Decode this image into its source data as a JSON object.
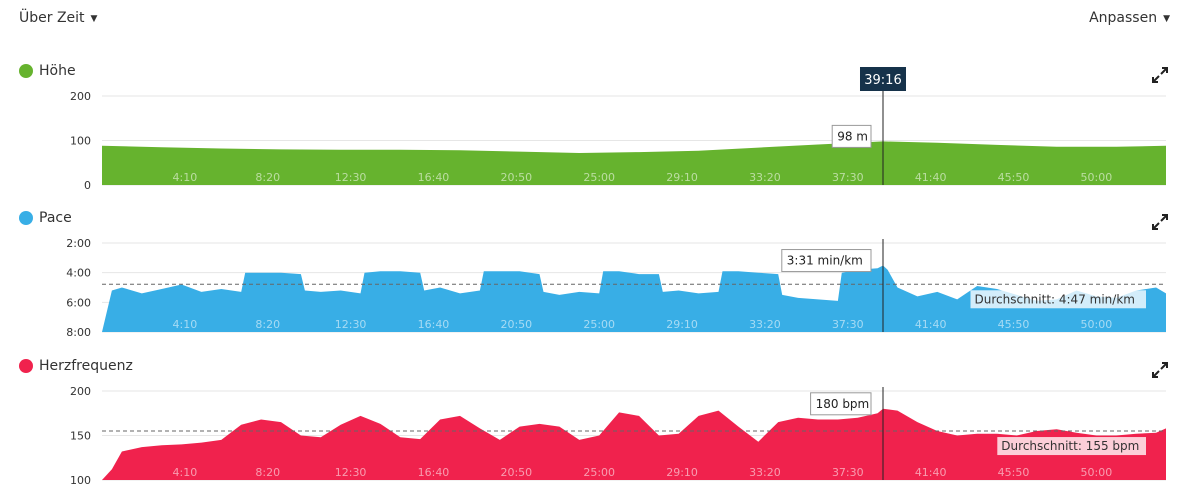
{
  "controls": {
    "time_selector": "Über Zeit",
    "customize": "Anpassen"
  },
  "cursor": {
    "time_label": "39:16",
    "x_minutes": 39.27
  },
  "x_tick_labels": [
    "4:10",
    "8:20",
    "12:30",
    "16:40",
    "20:50",
    "25:00",
    "29:10",
    "33:20",
    "37:30",
    "41:40",
    "45:50",
    "50:00"
  ],
  "colors": {
    "elevation": "#66b32e",
    "pace": "#38aee6",
    "heart_rate": "#f0224d"
  },
  "panels": {
    "elevation": {
      "title": "Höhe",
      "tooltip": "98 m"
    },
    "pace": {
      "title": "Pace",
      "tooltip": "3:31 min/km",
      "average_label": "Durchschnitt: 4:47 min/km"
    },
    "heart_rate": {
      "title": "Herzfrequenz",
      "tooltip": "180 bpm",
      "average_label": "Durchschnitt: 155 bpm"
    }
  },
  "chart_data": [
    {
      "type": "area",
      "series": [
        {
          "name": "Höhe",
          "unit": "m",
          "x": [
            0,
            3,
            6,
            9,
            12,
            15,
            18,
            21,
            24,
            27,
            30,
            33,
            36,
            39.27,
            42,
            45,
            48,
            51,
            53.5
          ],
          "y": [
            88,
            85,
            82,
            80,
            79,
            79,
            78,
            75,
            72,
            74,
            77,
            84,
            91,
            98,
            95,
            90,
            86,
            86,
            88
          ]
        }
      ],
      "x_ticks": [
        4.167,
        8.333,
        12.5,
        16.667,
        20.833,
        25,
        29.167,
        33.333,
        37.5,
        41.667,
        45.833,
        50
      ],
      "xlim": [
        0,
        53.5
      ],
      "y_ticks": [
        0,
        100,
        200
      ],
      "y_tick_labels": [
        "0",
        "100",
        "200"
      ],
      "ylim": [
        0,
        200
      ]
    },
    {
      "type": "area",
      "series": [
        {
          "name": "Pace",
          "unit": "min/km",
          "x": [
            0,
            0.5,
            1,
            2,
            3,
            4,
            5,
            6,
            7,
            7.2,
            8,
            9,
            10,
            10.2,
            11,
            12,
            13,
            13.2,
            14,
            15,
            16,
            16.2,
            17,
            18,
            19,
            19.2,
            20,
            21,
            22,
            22.2,
            23,
            24,
            25,
            25.2,
            26,
            27,
            28,
            28.2,
            29,
            30,
            31,
            31.2,
            32,
            33,
            34,
            34.2,
            35,
            36,
            37,
            37.2,
            38,
            39,
            39.27,
            39.5,
            40,
            41,
            42,
            43,
            44,
            45,
            46,
            47,
            48,
            49,
            50,
            51,
            52,
            53,
            53.5
          ],
          "y": [
            8,
            5.2,
            5.0,
            5.4,
            5.1,
            4.8,
            5.3,
            5.1,
            5.3,
            4.0,
            4.0,
            4.0,
            4.1,
            5.2,
            5.3,
            5.2,
            5.4,
            4.0,
            3.9,
            3.9,
            4.0,
            5.2,
            5.0,
            5.4,
            5.2,
            3.9,
            3.9,
            3.9,
            4.1,
            5.3,
            5.5,
            5.3,
            5.4,
            3.9,
            3.9,
            4.1,
            4.1,
            5.3,
            5.2,
            5.4,
            5.3,
            3.9,
            3.9,
            4.0,
            4.1,
            5.5,
            5.7,
            5.8,
            5.9,
            4.0,
            3.8,
            3.7,
            3.52,
            3.8,
            5.0,
            5.6,
            5.3,
            5.8,
            4.9,
            5.1,
            5.5,
            5.9,
            5.8,
            5.2,
            5.6,
            5.7,
            5.2,
            5.0,
            5.4
          ]
        }
      ],
      "x_ticks": [
        4.167,
        8.333,
        12.5,
        16.667,
        20.833,
        25,
        29.167,
        33.333,
        37.5,
        41.667,
        45.833,
        50
      ],
      "xlim": [
        0,
        53.5
      ],
      "y_ticks": [
        2,
        4,
        6,
        8
      ],
      "y_tick_labels": [
        "2:00",
        "4:00",
        "6:00",
        "8:00"
      ],
      "ylim": [
        8,
        2
      ],
      "average": 4.783
    },
    {
      "type": "area",
      "series": [
        {
          "name": "Herzfrequenz",
          "unit": "bpm",
          "x": [
            0,
            0.5,
            1,
            2,
            3,
            4,
            5,
            6,
            7,
            8,
            9,
            10,
            11,
            12,
            13,
            14,
            15,
            16,
            17,
            18,
            19,
            20,
            21,
            22,
            23,
            24,
            25,
            26,
            27,
            28,
            29,
            30,
            31,
            32,
            33,
            34,
            35,
            36,
            37,
            38,
            39,
            39.27,
            40,
            41,
            42,
            43,
            44,
            45,
            46,
            47,
            48,
            49,
            50,
            51,
            52,
            53,
            53.5
          ],
          "y": [
            100,
            112,
            132,
            137,
            139,
            140,
            142,
            145,
            162,
            168,
            165,
            150,
            148,
            162,
            172,
            163,
            148,
            146,
            168,
            172,
            158,
            145,
            160,
            163,
            160,
            145,
            150,
            176,
            172,
            150,
            152,
            172,
            178,
            160,
            143,
            165,
            170,
            168,
            168,
            170,
            175,
            180,
            178,
            165,
            155,
            150,
            152,
            152,
            150,
            155,
            157,
            153,
            150,
            150,
            152,
            153,
            158
          ]
        }
      ],
      "x_ticks": [
        4.167,
        8.333,
        12.5,
        16.667,
        20.833,
        25,
        29.167,
        33.333,
        37.5,
        41.667,
        45.833,
        50
      ],
      "xlim": [
        0,
        53.5
      ],
      "y_ticks": [
        100,
        150,
        200
      ],
      "y_tick_labels": [
        "100",
        "150",
        "200"
      ],
      "ylim": [
        100,
        200
      ],
      "average": 155
    }
  ]
}
